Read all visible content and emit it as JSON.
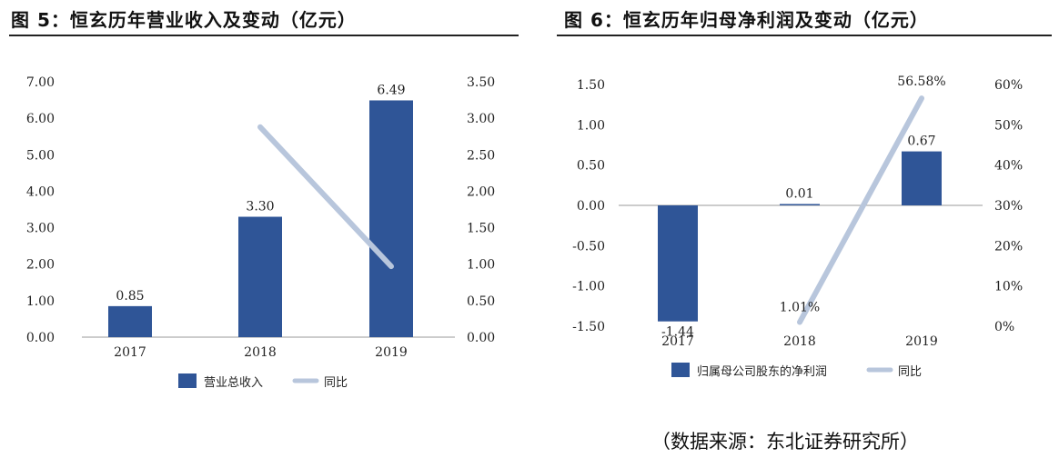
{
  "figures": {
    "left_title": "图 5：恒玄历年营业收入及变动（亿元）",
    "right_title": "图 6：恒玄历年归母净利润及变动（亿元）"
  },
  "source_note": "（数据来源：东北证券研究所）",
  "colors": {
    "bar": "#2f5597",
    "line": "#b8c6dc"
  },
  "chart_data": [
    {
      "type": "bar",
      "categories": [
        "2017",
        "2018",
        "2019"
      ],
      "series": [
        {
          "name": "营业总收入",
          "values": [
            0.85,
            3.3,
            6.49
          ],
          "axis": "left",
          "labels": [
            "0.85",
            "3.30",
            "6.49"
          ]
        },
        {
          "name": "同比",
          "type": "line",
          "values": [
            null,
            2.88,
            0.97
          ],
          "axis": "right"
        }
      ],
      "y_left": {
        "ylim": [
          0,
          7
        ],
        "ticks": [
          "0.00",
          "1.00",
          "2.00",
          "3.00",
          "4.00",
          "5.00",
          "6.00",
          "7.00"
        ]
      },
      "y_right": {
        "ylim": [
          0,
          3.5
        ],
        "ticks": [
          "0.00",
          "0.50",
          "1.00",
          "1.50",
          "2.00",
          "2.50",
          "3.00",
          "3.50"
        ]
      },
      "legend": "bottom",
      "grid": false
    },
    {
      "type": "bar",
      "categories": [
        "2017",
        "2018",
        "2019"
      ],
      "series": [
        {
          "name": "归属母公司股东的净利润",
          "values": [
            -1.44,
            0.01,
            0.67
          ],
          "axis": "left",
          "labels": [
            "-1.44",
            "0.01",
            "0.67"
          ]
        },
        {
          "name": "同比",
          "type": "line",
          "values": [
            null,
            1.01,
            56.58
          ],
          "axis": "right",
          "labels": [
            "",
            "1.01%",
            "56.58%"
          ]
        }
      ],
      "y_left": {
        "ylim": [
          -1.5,
          1.5
        ],
        "ticks": [
          "-1.50",
          "-1.00",
          "-0.50",
          "0.00",
          "0.50",
          "1.00",
          "1.50"
        ]
      },
      "y_right": {
        "ylim": [
          0,
          60
        ],
        "ticks": [
          "0%",
          "10%",
          "20%",
          "30%",
          "40%",
          "50%",
          "60%"
        ]
      },
      "legend": "bottom",
      "grid": false
    }
  ]
}
